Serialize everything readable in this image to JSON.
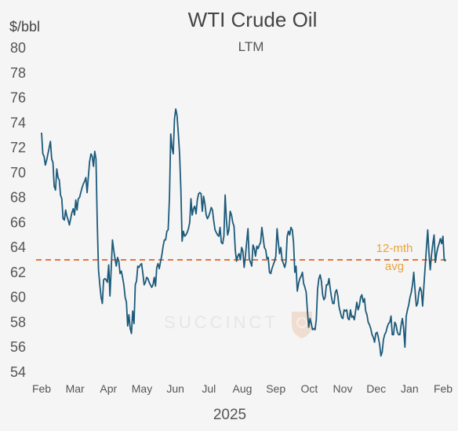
{
  "colors": {
    "line": "#1c5a7a",
    "avg": "#e8743b",
    "avg_label": "#e8a33a",
    "background": "#f5f5f5"
  },
  "chart_data": {
    "type": "line",
    "title": "WTI Crude Oil",
    "subtitle": "LTM",
    "ylabel": "$/bbl",
    "xlabel": "2025",
    "ylim": [
      54,
      80
    ],
    "yticks": [
      "80",
      "78",
      "76",
      "74",
      "72",
      "70",
      "68",
      "66",
      "64",
      "62",
      "60",
      "58",
      "56",
      "54"
    ],
    "xticks": [
      "Feb",
      "Mar",
      "Apr",
      "May",
      "Jun",
      "Jul",
      "Aug",
      "Sep",
      "Oct",
      "Nov",
      "Dec",
      "Jan",
      "Feb"
    ],
    "watermark": "SUCCINCT",
    "average": {
      "value": 63.0,
      "label_line1": "12-mth",
      "label_line2": "avg"
    },
    "series": [
      {
        "values": [
          73.2,
          71.5,
          71.3,
          70.6,
          71.0,
          71.5,
          72.0,
          72.5,
          71.1,
          70.8,
          68.9,
          68.6,
          70.3,
          69.6,
          69.4,
          68.2,
          67.9,
          66.3,
          66.2,
          67.0,
          66.5,
          66.2,
          65.8,
          66.3,
          66.8,
          67.1,
          66.6,
          67.8,
          67.0,
          67.9,
          68.0,
          68.4,
          68.8,
          69.1,
          69.3,
          69.6,
          68.4,
          69.7,
          70.9,
          71.5,
          71.3,
          70.5,
          71.7,
          71.1,
          66.0,
          62.2,
          61.0,
          60.0,
          59.5,
          61.4,
          61.5,
          61.4,
          61.2,
          62.6,
          60.1,
          62.3,
          64.6,
          63.8,
          63.1,
          62.5,
          63.2,
          62.9,
          61.9,
          62.1,
          61.6,
          61.0,
          60.0,
          59.6,
          57.7,
          58.6,
          57.5,
          57.1,
          58.9,
          57.9,
          61.0,
          61.3,
          62.5,
          62.4,
          62.6,
          62.7,
          61.9,
          61.0,
          61.2,
          61.6,
          61.5,
          61.2,
          61.0,
          60.8,
          61.0,
          61.6,
          60.9,
          62.4,
          62.7,
          62.3,
          62.9,
          63.4,
          64.1,
          64.6,
          64.6,
          65.3,
          65.4,
          68.0,
          73.1,
          72.0,
          71.5,
          74.3,
          75.1,
          74.6,
          73.1,
          71.5,
          68.7,
          64.5,
          65.3,
          64.9,
          65.0,
          65.2,
          65.5,
          66.0,
          67.9,
          66.6,
          67.1,
          67.3,
          66.7,
          67.8,
          68.3,
          68.4,
          68.3,
          66.9,
          68.1,
          67.5,
          66.6,
          66.3,
          66.5,
          66.8,
          67.2,
          67.0,
          66.1,
          65.4,
          65.2,
          65.0,
          64.9,
          65.6,
          64.4,
          64.3,
          64.9,
          68.2,
          66.2,
          65.0,
          65.4,
          66.9,
          66.6,
          66.0,
          65.7,
          63.8,
          62.9,
          63.3,
          63.5,
          63.0,
          64.0,
          63.7,
          62.4,
          63.3,
          64.4,
          65.5,
          63.1,
          62.8,
          62.5,
          64.2,
          63.9,
          63.3,
          64.1,
          63.9,
          64.2,
          64.4,
          65.6,
          64.8,
          64.0,
          63.8,
          63.1,
          63.2,
          62.0,
          61.9,
          62.3,
          62.6,
          62.9,
          63.3,
          65.5,
          64.4,
          63.5,
          64.0,
          63.0,
          62.7,
          62.4,
          62.8,
          64.9,
          65.3,
          65.0,
          65.6,
          65.4,
          64.4,
          62.0,
          62.5,
          60.5,
          61.1,
          61.5,
          61.7,
          62.0,
          61.1,
          60.8,
          60.4,
          58.9,
          57.6,
          58.3,
          57.9,
          57.4,
          57.5,
          57.4,
          58.2,
          60.6,
          61.5,
          61.8,
          61.3,
          60.2,
          59.8,
          60.0,
          61.0,
          61.0,
          61.5,
          60.7,
          60.0,
          59.5,
          59.5,
          60.4,
          60.6,
          60.1,
          59.2,
          58.8,
          58.4,
          58.3,
          59.0,
          58.9,
          59.0,
          58.3,
          58.2,
          59.0,
          58.4,
          58.5,
          58.2,
          58.9,
          59.6,
          59.0,
          59.3,
          60.0,
          60.2,
          59.6,
          59.9,
          58.9,
          58.6,
          58.0,
          57.8,
          57.5,
          57.0,
          56.8,
          56.4,
          57.1,
          57.2,
          56.8,
          56.2,
          55.3,
          55.6,
          56.6,
          57.0,
          57.2,
          57.6,
          57.9,
          58.0,
          58.5,
          57.0,
          57.0,
          58.0,
          57.8,
          57.2,
          57.0,
          57.0,
          57.8,
          58.3,
          57.5,
          56.0,
          58.5,
          59.0,
          59.4,
          60.0,
          60.4,
          61.0,
          62.0,
          60.5,
          59.3,
          59.5,
          60.4,
          60.8,
          60.5,
          59.3,
          61.0,
          62.5,
          64.0,
          65.4,
          63.5,
          62.2,
          63.4,
          64.3,
          65.0,
          62.8,
          63.5,
          64.0,
          64.3,
          64.7,
          64.3,
          64.9,
          63.0,
          62.9
        ]
      }
    ]
  }
}
